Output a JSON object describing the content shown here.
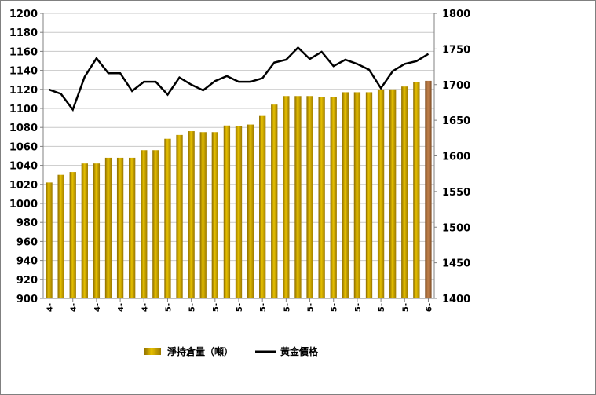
{
  "chart_data": {
    "type": "bar",
    "categories": [
      "4-",
      "4-",
      "4-",
      "4-",
      "4-",
      "4-",
      "4-",
      "4-",
      "4-",
      "4-",
      "5-",
      "5-",
      "5-",
      "5-",
      "5-",
      "5-",
      "5-",
      "5-",
      "5-",
      "5-",
      "5-",
      "5-",
      "5-",
      "5-",
      "5-",
      "5-",
      "5-",
      "5-",
      "5-",
      "5-",
      "5-",
      "5-",
      "6-"
    ],
    "x_tick_labels": [
      "4-",
      "4-",
      "4-",
      "4-",
      "4-",
      "5-",
      "5-",
      "5-",
      "5-",
      "5-",
      "5-",
      "5-",
      "5-",
      "5-",
      "5-",
      "5-",
      "6-"
    ],
    "series": [
      {
        "name": "淨持倉量（噸）",
        "type": "bar",
        "axis": "left",
        "color": "#c8a000",
        "highlight_color": "#b0703a",
        "values": [
          1022,
          1030,
          1033,
          1042,
          1042,
          1048,
          1048,
          1048,
          1056,
          1056,
          1068,
          1072,
          1076,
          1075,
          1075,
          1082,
          1081,
          1083,
          1092,
          1104,
          1113,
          1113,
          1113,
          1112,
          1112,
          1117,
          1117,
          1117,
          1120,
          1120,
          1123,
          1128,
          1129
        ]
      },
      {
        "name": "黃金價格",
        "type": "line",
        "axis": "right",
        "color": "#000000",
        "values": [
          1693,
          1687,
          1665,
          1711,
          1737,
          1716,
          1716,
          1691,
          1704,
          1704,
          1686,
          1710,
          1700,
          1692,
          1705,
          1712,
          1704,
          1704,
          1709,
          1731,
          1735,
          1752,
          1736,
          1746,
          1726,
          1735,
          1729,
          1721,
          1695,
          1719,
          1729,
          1733,
          1743
        ]
      }
    ],
    "y_left": {
      "min": 900,
      "max": 1200,
      "step": 20,
      "ticks": [
        "900",
        "920",
        "940",
        "960",
        "980",
        "1000",
        "1020",
        "1040",
        "1060",
        "1080",
        "1100",
        "1120",
        "1140",
        "1160",
        "1180",
        "1200"
      ]
    },
    "y_right": {
      "min": 1400,
      "max": 1800,
      "step": 50,
      "ticks": [
        "1400",
        "1450",
        "1500",
        "1550",
        "1600",
        "1650",
        "1700",
        "1750",
        "1800"
      ]
    },
    "grid": true,
    "legend_position": "bottom"
  }
}
